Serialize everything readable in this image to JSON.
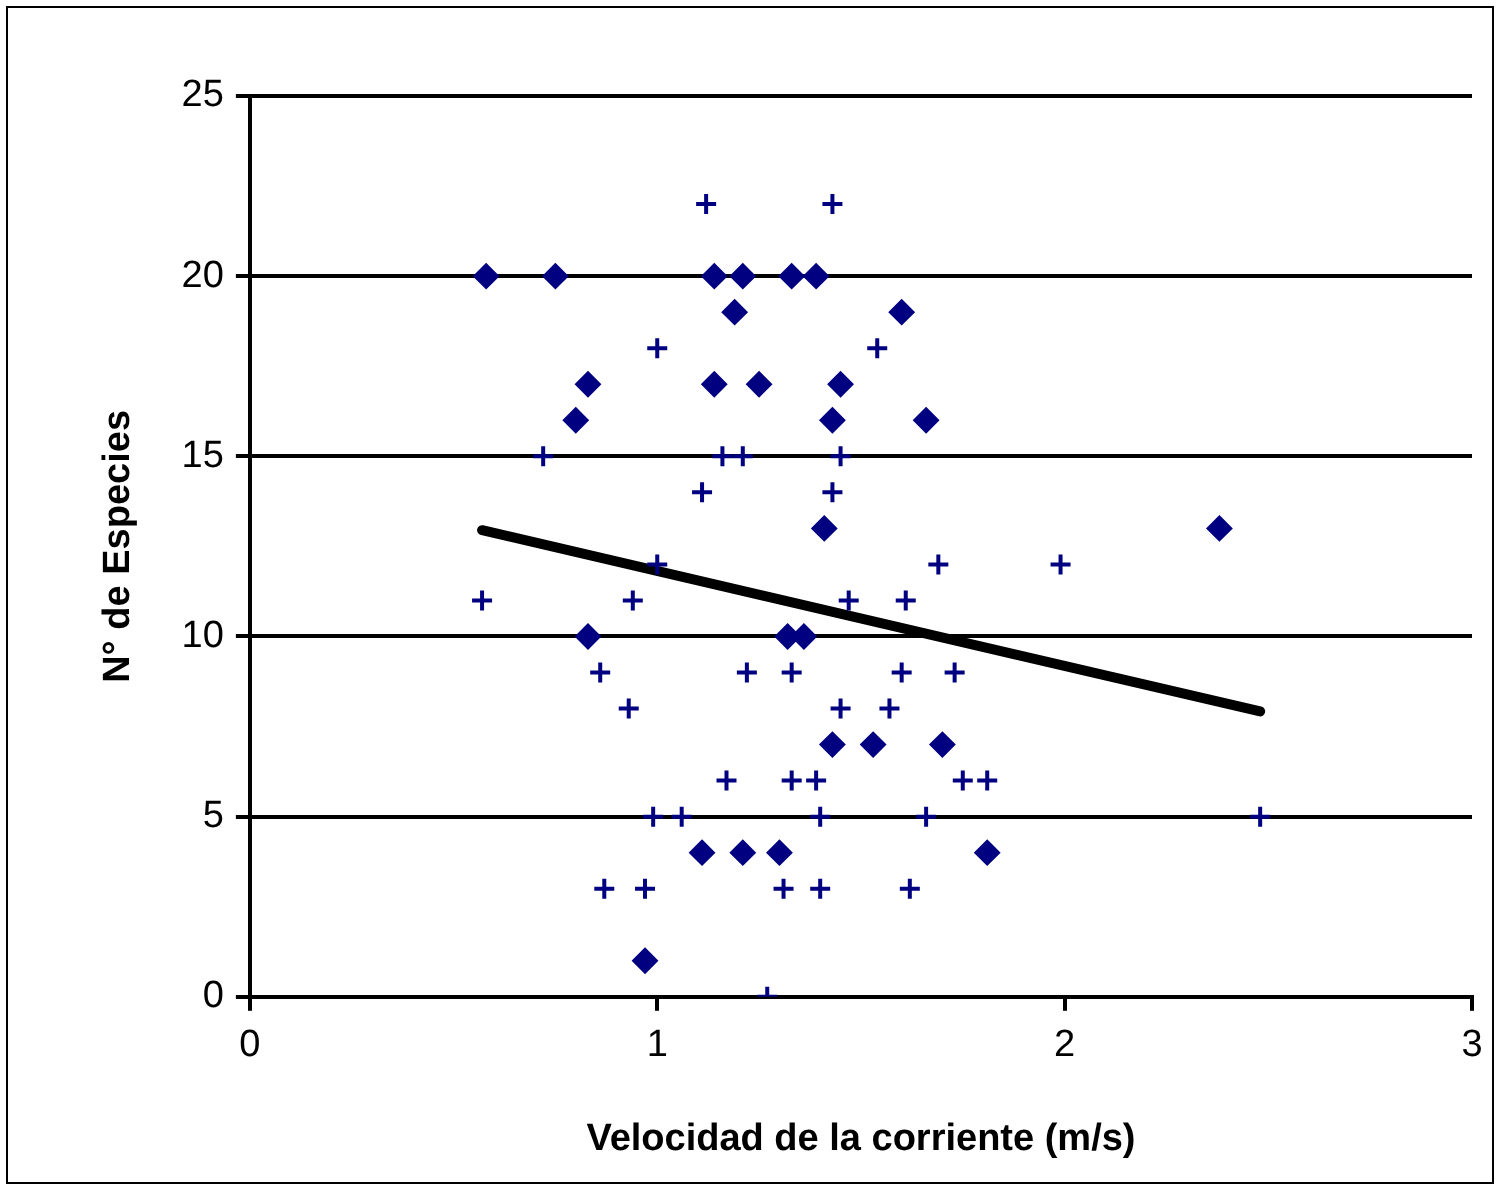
{
  "chart_data": {
    "type": "scatter",
    "xlabel": "Velocidad de la corriente (m/s)",
    "ylabel": "N° de Especies",
    "xlim": [
      0,
      3
    ],
    "xticks": [
      0,
      1,
      2,
      3
    ],
    "ylim": [
      0,
      25
    ],
    "yticks": [
      0,
      5,
      10,
      15,
      20,
      25
    ],
    "grid": "y",
    "legend": false,
    "series": [
      {
        "type": "scatter",
        "marker": "diamond",
        "color": "#000080",
        "x": [
          0.58,
          0.75,
          0.83,
          0.8,
          0.83,
          0.97,
          1.14,
          1.21,
          1.33,
          1.39,
          1.19,
          1.6,
          1.14,
          1.25,
          1.45,
          1.43,
          1.66,
          1.41,
          1.32,
          1.36,
          1.43,
          1.53,
          1.7,
          1.11,
          1.21,
          1.3,
          1.81,
          2.38
        ],
        "values": [
          20,
          20,
          17,
          16,
          10,
          1,
          20,
          20,
          20,
          20,
          19,
          19,
          17,
          17,
          17,
          16,
          16,
          13,
          10,
          10,
          7,
          7,
          7,
          4,
          4,
          4,
          4,
          13
        ]
      },
      {
        "type": "scatter",
        "marker": "cross",
        "color": "#000080",
        "x": [
          1.12,
          1.43,
          1.0,
          1.54,
          0.72,
          1.16,
          1.21,
          1.45,
          1.11,
          1.43,
          1.0,
          1.69,
          1.99,
          0.57,
          0.94,
          1.47,
          1.61,
          0.86,
          1.22,
          1.33,
          1.6,
          1.73,
          0.93,
          1.45,
          1.57,
          1.17,
          1.33,
          1.39,
          1.75,
          1.81,
          0.99,
          1.06,
          1.4,
          1.66,
          2.48,
          0.87,
          0.97,
          1.31,
          1.4,
          1.62,
          1.27
        ],
        "values": [
          22,
          22,
          18,
          18,
          15,
          15,
          15,
          15,
          14,
          14,
          12,
          12,
          12,
          11,
          11,
          11,
          11,
          9,
          9,
          9,
          9,
          9,
          8,
          8,
          8,
          6,
          6,
          6,
          6,
          6,
          5,
          5,
          5,
          5,
          5,
          3,
          3,
          3,
          3,
          3,
          0
        ]
      },
      {
        "type": "line",
        "marker": "none",
        "color": "#000000",
        "x": [
          0.57,
          2.48
        ],
        "values": [
          12.95,
          7.92
        ]
      }
    ]
  }
}
